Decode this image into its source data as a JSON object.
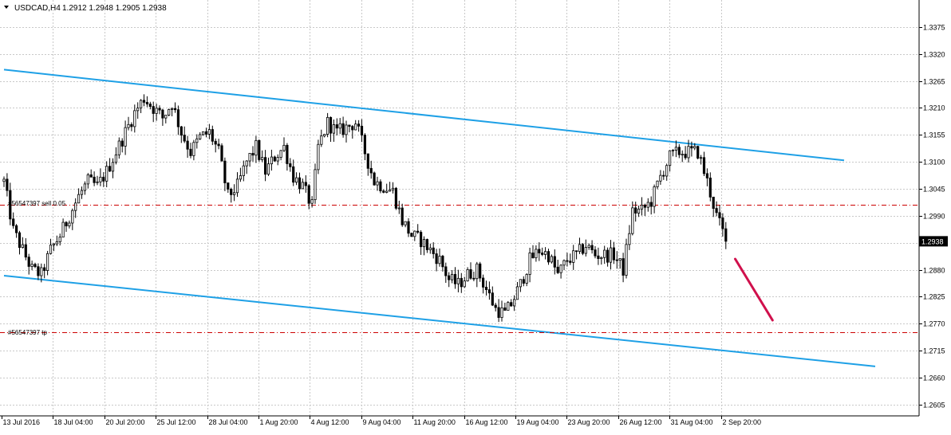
{
  "header": {
    "dropdown_icon": "triangle-down-icon",
    "symbol": "USDCAD,H4",
    "ohlc": "1.2912 1.2948 1.2905 1.2938"
  },
  "colors": {
    "background": "#ffffff",
    "grid": "#c8c8c8",
    "candle": "#000000",
    "channel": "#1ea0e6",
    "order_line": "#cc0000",
    "arrow": "#d0104c",
    "price_label_bg": "#000000",
    "price_label_fg": "#ffffff"
  },
  "order_labels": {
    "sell": "#56547397 sell 0.05",
    "tp": "#56547397 tp"
  },
  "current_price_label": "1.2938",
  "chart_data": {
    "type": "candlestick",
    "title": "USDCAD,H4",
    "ylim": [
      1.2582,
      1.343
    ],
    "grid": true,
    "y_ticks": [
      "1.3375",
      "1.3320",
      "1.3265",
      "1.3210",
      "1.3155",
      "1.3100",
      "1.3045",
      "1.2990",
      "1.2935",
      "1.2880",
      "1.2825",
      "1.2770",
      "1.2715",
      "1.2660",
      "1.2605"
    ],
    "x_ticks": [
      "13 Jul 2016",
      "18 Jul 04:00",
      "20 Jul 20:00",
      "25 Jul 12:00",
      "28 Jul 04:00",
      "1 Aug 20:00",
      "4 Aug 12:00",
      "9 Aug 04:00",
      "11 Aug 20:00",
      "16 Aug 12:00",
      "19 Aug 04:00",
      "23 Aug 20:00",
      "26 Aug 12:00",
      "31 Aug 04:00",
      "2 Sep 20:00"
    ],
    "trend_path": [
      [
        0,
        1.306
      ],
      [
        3,
        1.296
      ],
      [
        6,
        1.292
      ],
      [
        9,
        1.288
      ],
      [
        12,
        1.287
      ],
      [
        15,
        1.292
      ],
      [
        18,
        1.295
      ],
      [
        21,
        1.299
      ],
      [
        24,
        1.303
      ],
      [
        27,
        1.306
      ],
      [
        30,
        1.305
      ],
      [
        33,
        1.308
      ],
      [
        36,
        1.312
      ],
      [
        39,
        1.316
      ],
      [
        42,
        1.32
      ],
      [
        45,
        1.323
      ],
      [
        48,
        1.321
      ],
      [
        51,
        1.319
      ],
      [
        54,
        1.322
      ],
      [
        57,
        1.316
      ],
      [
        60,
        1.312
      ],
      [
        63,
        1.315
      ],
      [
        66,
        1.316
      ],
      [
        69,
        1.312
      ],
      [
        72,
        1.303
      ],
      [
        75,
        1.305
      ],
      [
        78,
        1.31
      ],
      [
        81,
        1.313
      ],
      [
        84,
        1.308
      ],
      [
        87,
        1.311
      ],
      [
        90,
        1.313
      ],
      [
        93,
        1.307
      ],
      [
        96,
        1.305
      ],
      [
        99,
        1.301
      ],
      [
        101,
        1.313
      ],
      [
        104,
        1.318
      ],
      [
        107,
        1.316
      ],
      [
        110,
        1.317
      ],
      [
        113,
        1.318
      ],
      [
        116,
        1.312
      ],
      [
        119,
        1.306
      ],
      [
        122,
        1.305
      ],
      [
        125,
        1.304
      ],
      [
        128,
        1.298
      ],
      [
        131,
        1.295
      ],
      [
        134,
        1.294
      ],
      [
        137,
        1.292
      ],
      [
        140,
        1.29
      ],
      [
        143,
        1.286
      ],
      [
        146,
        1.285
      ],
      [
        149,
        1.287
      ],
      [
        152,
        1.288
      ],
      [
        155,
        1.284
      ],
      [
        158,
        1.28
      ],
      [
        161,
        1.279
      ],
      [
        163,
        1.281
      ],
      [
        166,
        1.285
      ],
      [
        169,
        1.29
      ],
      [
        172,
        1.292
      ],
      [
        175,
        1.291
      ],
      [
        178,
        1.287
      ],
      [
        181,
        1.29
      ],
      [
        184,
        1.291
      ],
      [
        187,
        1.293
      ],
      [
        190,
        1.291
      ],
      [
        193,
        1.291
      ],
      [
        196,
        1.291
      ],
      [
        199,
        1.288
      ],
      [
        202,
        1.3
      ],
      [
        205,
        1.3
      ],
      [
        208,
        1.302
      ],
      [
        211,
        1.307
      ],
      [
        214,
        1.311
      ],
      [
        217,
        1.312
      ],
      [
        220,
        1.312
      ],
      [
        223,
        1.312
      ],
      [
        226,
        1.306
      ],
      [
        229,
        1.299
      ],
      [
        232,
        1.294
      ]
    ],
    "channel_upper": [
      [
        0,
        1.3288
      ],
      [
        270,
        1.3103
      ]
    ],
    "channel_lower": [
      [
        0,
        1.2868
      ],
      [
        280,
        1.2683
      ]
    ],
    "order_lines": [
      {
        "name": "#56547397 sell 0.05",
        "price": 1.3013
      },
      {
        "name": "#56547397 tp",
        "price": 1.2752
      }
    ],
    "projection": [
      [
        235,
        1.2902
      ],
      [
        247,
        1.2777
      ]
    ],
    "current_price": 1.2938
  }
}
